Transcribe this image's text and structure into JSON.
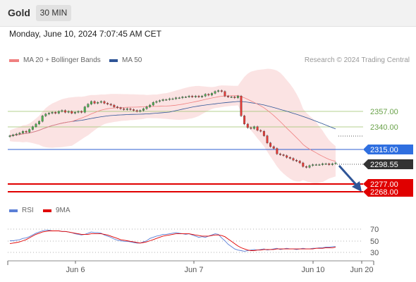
{
  "header": {
    "symbol": "Gold",
    "timeframe": "30 MIN"
  },
  "timestamp": "Monday, June 10, 2024 7:07:45 AM CET",
  "legend": {
    "price": [
      {
        "name": "MA 20 + Bollinger Bands",
        "color": "#f08080"
      },
      {
        "name": "MA 50",
        "color": "#2f5597"
      }
    ],
    "rsi": [
      {
        "name": "RSI",
        "color": "#5b7fd6"
      },
      {
        "name": "9MA",
        "color": "#e00000"
      }
    ]
  },
  "credit": "Research © 2024 Trading Central",
  "levels": {
    "r1": "2357.00",
    "r2": "2340.00",
    "pivot": "2315.00",
    "last": "2298.55",
    "s1": "2277.00",
    "s2": "2268.00"
  },
  "rsi_levels": [
    "70",
    "50",
    "30"
  ],
  "x_axis": [
    "Jun 6",
    "Jun 7",
    "Jun 10",
    "Jun 20"
  ],
  "colors": {
    "support": "#e00000",
    "pivot": "#2f5fd0",
    "resistance": "#9bc36a",
    "bull": "#4caf50",
    "bear": "#e53935"
  },
  "chart_data": {
    "type": "candlestick",
    "price_range": [
      2255,
      2395
    ],
    "rsi_range": [
      20,
      85
    ],
    "close": [
      2330,
      2331,
      2332,
      2333,
      2335,
      2334,
      2337,
      2340,
      2343,
      2346,
      2352,
      2354,
      2355,
      2356,
      2355,
      2357,
      2358,
      2356,
      2357,
      2355,
      2356,
      2357,
      2356,
      2362,
      2365,
      2368,
      2366,
      2367,
      2368,
      2366,
      2365,
      2364,
      2362,
      2361,
      2360,
      2359,
      2360,
      2359,
      2358,
      2357,
      2358,
      2360,
      2362,
      2364,
      2367,
      2368,
      2369,
      2370,
      2370,
      2371,
      2371,
      2372,
      2372,
      2373,
      2373,
      2374,
      2373,
      2374,
      2373,
      2374,
      2376,
      2375,
      2377,
      2379,
      2380,
      2379,
      2374,
      2373,
      2373,
      2372,
      2374,
      2352,
      2343,
      2339,
      2338,
      2340,
      2336,
      2335,
      2330,
      2322,
      2318,
      2316,
      2310,
      2309,
      2308,
      2306,
      2305,
      2303,
      2302,
      2300,
      2296,
      2295,
      2297,
      2298,
      2298,
      2298,
      2299,
      2299,
      2298,
      2299,
      2300
    ],
    "rsi": [
      50,
      50,
      51,
      52,
      54,
      55,
      57,
      60,
      63,
      65,
      67,
      68,
      68,
      67,
      67,
      67,
      66,
      66,
      65,
      64,
      62,
      61,
      60,
      61,
      63,
      65,
      64,
      64,
      63,
      60,
      58,
      56,
      53,
      51,
      50,
      49,
      49,
      48,
      47,
      46,
      46,
      48,
      50,
      54,
      56,
      58,
      59,
      61,
      61,
      62,
      63,
      64,
      63,
      62,
      61,
      62,
      60,
      58,
      56,
      57,
      56,
      58,
      60,
      62,
      61,
      55,
      50,
      44,
      40,
      36,
      34,
      33,
      32,
      33,
      34,
      35,
      34,
      35,
      36,
      34,
      35,
      36,
      37,
      35,
      36,
      37,
      36,
      36,
      35,
      36,
      37,
      36,
      36,
      37,
      37,
      38,
      38,
      39,
      39,
      40,
      40
    ],
    "rsi_ma": [
      45,
      46,
      47,
      48,
      50,
      52,
      55,
      58,
      61,
      63,
      65,
      66,
      67,
      67,
      67,
      67,
      66,
      66,
      65,
      64,
      63,
      62,
      61,
      61,
      61,
      62,
      62,
      62,
      62,
      61,
      60,
      58,
      56,
      54,
      52,
      51,
      50,
      49,
      48,
      47,
      46,
      47,
      48,
      50,
      52,
      54,
      56,
      58,
      59,
      60,
      61,
      62,
      62,
      62,
      62,
      62,
      61,
      60,
      59,
      58,
      58,
      58,
      59,
      60,
      60,
      59,
      57,
      53,
      49,
      45,
      41,
      38,
      36,
      34,
      33,
      33,
      34,
      34,
      35,
      35,
      35,
      35,
      36,
      36,
      36,
      36,
      36,
      36,
      36,
      36,
      36,
      36,
      36,
      36,
      37,
      37,
      37,
      38,
      38,
      38,
      39
    ]
  }
}
